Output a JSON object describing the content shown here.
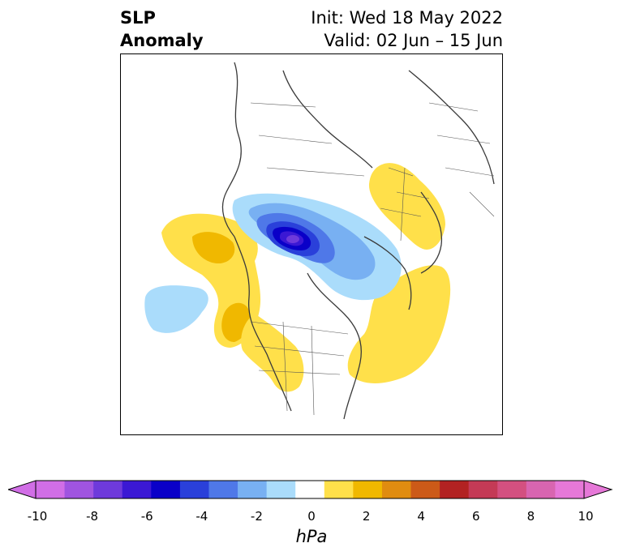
{
  "title": {
    "line1": "SLP",
    "line2": "Anomaly",
    "init": "Init: Wed 18 May 2022",
    "valid": "Valid: 02 Jun – 15 Jun"
  },
  "colorbar": {
    "ticks": [
      "-10",
      "-8",
      "-6",
      "-4",
      "-2",
      "0",
      "2",
      "4",
      "6",
      "8",
      "10"
    ],
    "units": "hPa",
    "colors": [
      "#d16ee6",
      "#a054e0",
      "#6e3adb",
      "#3b18d4",
      "#0a00c8",
      "#2a40da",
      "#4f78e8",
      "#78b0f2",
      "#aadcfb",
      "#ffffff",
      "#ffe04a",
      "#f0b800",
      "#e08c10",
      "#cc5a18",
      "#b22222",
      "#c43a56",
      "#d35080",
      "#d865b0",
      "#e678d8"
    ],
    "extend_low_color": "#d16ee6",
    "extend_high_color": "#e678d8"
  }
}
